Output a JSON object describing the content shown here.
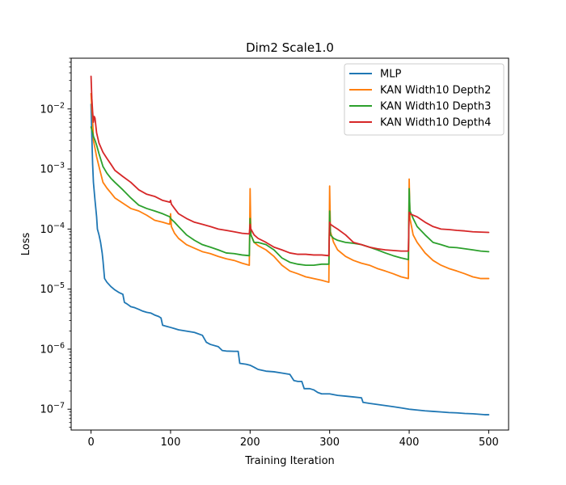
{
  "chart_data": {
    "type": "line",
    "title": "Dim2 Scale1.0",
    "xlabel": "Training Iteration",
    "ylabel": "Loss",
    "yscale": "log",
    "xlim": [
      -25,
      525
    ],
    "ylim": [
      4.5e-08,
      0.07
    ],
    "x_ticks": [
      0,
      100,
      200,
      300,
      400,
      500
    ],
    "x_tick_labels": [
      "0",
      "100",
      "200",
      "300",
      "400",
      "500"
    ],
    "y_ticks": [
      1e-07,
      1e-06,
      1e-05,
      0.0001,
      0.001,
      0.01
    ],
    "y_tick_labels": [
      {
        "base": "10",
        "exp": "−7"
      },
      {
        "base": "10",
        "exp": "−6"
      },
      {
        "base": "10",
        "exp": "−5"
      },
      {
        "base": "10",
        "exp": "−4"
      },
      {
        "base": "10",
        "exp": "−3"
      },
      {
        "base": "10",
        "exp": "−2"
      }
    ],
    "legend_position": "top-right",
    "series": [
      {
        "name": "MLP",
        "color": "#1f77b4",
        "points": [
          [
            0,
            0.012
          ],
          [
            1,
            0.0035
          ],
          [
            2,
            0.0012
          ],
          [
            3,
            0.0006
          ],
          [
            5,
            0.0003
          ],
          [
            7,
            0.00016
          ],
          [
            8,
            0.0001
          ],
          [
            10,
            8e-05
          ],
          [
            12,
            6e-05
          ],
          [
            14,
            4e-05
          ],
          [
            15,
            3e-05
          ],
          [
            17,
            1.5e-05
          ],
          [
            20,
            1.3e-05
          ],
          [
            25,
            1.1e-05
          ],
          [
            30,
            9.7e-06
          ],
          [
            35,
            8.8e-06
          ],
          [
            40,
            8.2e-06
          ],
          [
            42,
            6e-06
          ],
          [
            45,
            5.7e-06
          ],
          [
            50,
            5.1e-06
          ],
          [
            55,
            4.9e-06
          ],
          [
            60,
            4.6e-06
          ],
          [
            65,
            4.3e-06
          ],
          [
            70,
            4.1e-06
          ],
          [
            75,
            4e-06
          ],
          [
            80,
            3.7e-06
          ],
          [
            85,
            3.5e-06
          ],
          [
            88,
            3.3e-06
          ],
          [
            90,
            2.5e-06
          ],
          [
            95,
            2.4e-06
          ],
          [
            100,
            2.3e-06
          ],
          [
            105,
            2.2e-06
          ],
          [
            110,
            2.1e-06
          ],
          [
            120,
            2e-06
          ],
          [
            130,
            1.9e-06
          ],
          [
            140,
            1.7e-06
          ],
          [
            145,
            1.3e-06
          ],
          [
            150,
            1.2e-06
          ],
          [
            160,
            1.1e-06
          ],
          [
            165,
            9.5e-07
          ],
          [
            170,
            9.3e-07
          ],
          [
            180,
            9.2e-07
          ],
          [
            185,
            9.2e-07
          ],
          [
            187,
            5.8e-07
          ],
          [
            195,
            5.6e-07
          ],
          [
            200,
            5.4e-07
          ],
          [
            205,
            5e-07
          ],
          [
            210,
            4.6e-07
          ],
          [
            220,
            4.3e-07
          ],
          [
            230,
            4.2e-07
          ],
          [
            240,
            4e-07
          ],
          [
            250,
            3.8e-07
          ],
          [
            255,
            3e-07
          ],
          [
            260,
            2.9e-07
          ],
          [
            265,
            2.9e-07
          ],
          [
            268,
            2.2e-07
          ],
          [
            275,
            2.2e-07
          ],
          [
            280,
            2.1e-07
          ],
          [
            285,
            1.9e-07
          ],
          [
            290,
            1.8e-07
          ],
          [
            300,
            1.8e-07
          ],
          [
            310,
            1.7e-07
          ],
          [
            320,
            1.65e-07
          ],
          [
            330,
            1.6e-07
          ],
          [
            340,
            1.55e-07
          ],
          [
            342,
            1.3e-07
          ],
          [
            350,
            1.25e-07
          ],
          [
            360,
            1.2e-07
          ],
          [
            370,
            1.15e-07
          ],
          [
            380,
            1.1e-07
          ],
          [
            390,
            1.05e-07
          ],
          [
            400,
            1e-07
          ],
          [
            410,
            9.7e-08
          ],
          [
            420,
            9.4e-08
          ],
          [
            430,
            9.2e-08
          ],
          [
            440,
            9e-08
          ],
          [
            450,
            8.8e-08
          ],
          [
            460,
            8.7e-08
          ],
          [
            470,
            8.5e-08
          ],
          [
            480,
            8.4e-08
          ],
          [
            490,
            8.2e-08
          ],
          [
            495,
            8.1e-08
          ],
          [
            500,
            8.1e-08
          ]
        ]
      },
      {
        "name": "KAN Width10 Depth2",
        "color": "#ff7f0e",
        "points": [
          [
            0,
            0.018
          ],
          [
            1,
            0.01
          ],
          [
            2,
            0.007
          ],
          [
            3,
            0.003
          ],
          [
            5,
            0.0022
          ],
          [
            7,
            0.0016
          ],
          [
            10,
            0.0011
          ],
          [
            15,
            0.0006
          ],
          [
            20,
            0.00048
          ],
          [
            25,
            0.0004
          ],
          [
            30,
            0.00033
          ],
          [
            40,
            0.00027
          ],
          [
            50,
            0.00022
          ],
          [
            60,
            0.0002
          ],
          [
            70,
            0.00017
          ],
          [
            80,
            0.00014
          ],
          [
            90,
            0.00013
          ],
          [
            99,
            0.00012
          ],
          [
            100,
            0.00018
          ],
          [
            101,
            0.00011
          ],
          [
            105,
            8.5e-05
          ],
          [
            110,
            7e-05
          ],
          [
            120,
            5.5e-05
          ],
          [
            130,
            4.8e-05
          ],
          [
            140,
            4.2e-05
          ],
          [
            150,
            3.9e-05
          ],
          [
            160,
            3.5e-05
          ],
          [
            170,
            3.2e-05
          ],
          [
            180,
            3e-05
          ],
          [
            190,
            2.7e-05
          ],
          [
            199,
            2.5e-05
          ],
          [
            200,
            0.00047
          ],
          [
            201,
            8e-05
          ],
          [
            205,
            6e-05
          ],
          [
            210,
            5.3e-05
          ],
          [
            220,
            4.5e-05
          ],
          [
            230,
            3.5e-05
          ],
          [
            240,
            2.5e-05
          ],
          [
            250,
            2e-05
          ],
          [
            260,
            1.8e-05
          ],
          [
            270,
            1.6e-05
          ],
          [
            280,
            1.5e-05
          ],
          [
            290,
            1.4e-05
          ],
          [
            299,
            1.3e-05
          ],
          [
            300,
            0.00052
          ],
          [
            301,
            9e-05
          ],
          [
            305,
            6e-05
          ],
          [
            310,
            4.5e-05
          ],
          [
            320,
            3.5e-05
          ],
          [
            330,
            3e-05
          ],
          [
            340,
            2.7e-05
          ],
          [
            350,
            2.5e-05
          ],
          [
            360,
            2.2e-05
          ],
          [
            370,
            2e-05
          ],
          [
            380,
            1.8e-05
          ],
          [
            390,
            1.6e-05
          ],
          [
            399,
            1.5e-05
          ],
          [
            400,
            0.00068
          ],
          [
            401,
            0.00015
          ],
          [
            405,
            8e-05
          ],
          [
            410,
            6e-05
          ],
          [
            420,
            4e-05
          ],
          [
            430,
            3e-05
          ],
          [
            440,
            2.5e-05
          ],
          [
            450,
            2.2e-05
          ],
          [
            460,
            2e-05
          ],
          [
            470,
            1.8e-05
          ],
          [
            480,
            1.6e-05
          ],
          [
            490,
            1.5e-05
          ],
          [
            500,
            1.5e-05
          ]
        ]
      },
      {
        "name": "KAN Width10 Depth3",
        "color": "#2ca02c",
        "points": [
          [
            0,
            0.005
          ],
          [
            1,
            0.0045
          ],
          [
            2,
            0.004
          ],
          [
            3,
            0.0035
          ],
          [
            5,
            0.003
          ],
          [
            7,
            0.0025
          ],
          [
            10,
            0.0018
          ],
          [
            15,
            0.0011
          ],
          [
            20,
            0.00085
          ],
          [
            25,
            0.0007
          ],
          [
            30,
            0.0006
          ],
          [
            40,
            0.00045
          ],
          [
            50,
            0.00033
          ],
          [
            60,
            0.00025
          ],
          [
            70,
            0.00022
          ],
          [
            80,
            0.0002
          ],
          [
            90,
            0.00018
          ],
          [
            99,
            0.00016
          ],
          [
            100,
            0.00015
          ],
          [
            105,
            0.00013
          ],
          [
            110,
            0.00011
          ],
          [
            120,
            8e-05
          ],
          [
            130,
            6.5e-05
          ],
          [
            140,
            5.5e-05
          ],
          [
            150,
            5e-05
          ],
          [
            160,
            4.5e-05
          ],
          [
            170,
            4e-05
          ],
          [
            180,
            3.9e-05
          ],
          [
            190,
            3.7e-05
          ],
          [
            199,
            3.6e-05
          ],
          [
            200,
            0.00015
          ],
          [
            201,
            8e-05
          ],
          [
            205,
            6e-05
          ],
          [
            210,
            6e-05
          ],
          [
            220,
            5.5e-05
          ],
          [
            230,
            4.5e-05
          ],
          [
            240,
            3.3e-05
          ],
          [
            250,
            2.8e-05
          ],
          [
            260,
            2.6e-05
          ],
          [
            270,
            2.5e-05
          ],
          [
            280,
            2.5e-05
          ],
          [
            290,
            2.6e-05
          ],
          [
            299,
            2.6e-05
          ],
          [
            300,
            0.0002
          ],
          [
            301,
            8e-05
          ],
          [
            305,
            7e-05
          ],
          [
            310,
            6.5e-05
          ],
          [
            320,
            6e-05
          ],
          [
            330,
            5.8e-05
          ],
          [
            340,
            5.5e-05
          ],
          [
            350,
            5e-05
          ],
          [
            360,
            4.5e-05
          ],
          [
            370,
            4e-05
          ],
          [
            380,
            3.6e-05
          ],
          [
            390,
            3.3e-05
          ],
          [
            399,
            3.1e-05
          ],
          [
            400,
            0.00047
          ],
          [
            401,
            0.0002
          ],
          [
            405,
            0.00015
          ],
          [
            410,
            0.00011
          ],
          [
            420,
            8e-05
          ],
          [
            430,
            6e-05
          ],
          [
            440,
            5.5e-05
          ],
          [
            450,
            5e-05
          ],
          [
            460,
            4.9e-05
          ],
          [
            470,
            4.7e-05
          ],
          [
            480,
            4.5e-05
          ],
          [
            490,
            4.3e-05
          ],
          [
            500,
            4.2e-05
          ]
        ]
      },
      {
        "name": "KAN Width10 Depth4",
        "color": "#d62728",
        "points": [
          [
            0,
            0.035
          ],
          [
            1,
            0.015
          ],
          [
            2,
            0.009
          ],
          [
            3,
            0.006
          ],
          [
            4,
            0.0075
          ],
          [
            5,
            0.007
          ],
          [
            7,
            0.004
          ],
          [
            10,
            0.0027
          ],
          [
            15,
            0.0019
          ],
          [
            20,
            0.0015
          ],
          [
            25,
            0.0012
          ],
          [
            30,
            0.00095
          ],
          [
            40,
            0.00075
          ],
          [
            50,
            0.0006
          ],
          [
            60,
            0.00045
          ],
          [
            70,
            0.00038
          ],
          [
            80,
            0.00035
          ],
          [
            90,
            0.0003
          ],
          [
            99,
            0.00028
          ],
          [
            100,
            0.0003
          ],
          [
            101,
            0.00026
          ],
          [
            105,
            0.00022
          ],
          [
            110,
            0.00018
          ],
          [
            120,
            0.00015
          ],
          [
            130,
            0.00013
          ],
          [
            140,
            0.00012
          ],
          [
            150,
            0.00011
          ],
          [
            160,
            0.0001
          ],
          [
            170,
            9.5e-05
          ],
          [
            180,
            9e-05
          ],
          [
            190,
            8.5e-05
          ],
          [
            199,
            8.3e-05
          ],
          [
            200,
            0.00012
          ],
          [
            201,
            0.0001
          ],
          [
            205,
            8e-05
          ],
          [
            210,
            7e-05
          ],
          [
            220,
            6e-05
          ],
          [
            230,
            5e-05
          ],
          [
            240,
            4.5e-05
          ],
          [
            250,
            4e-05
          ],
          [
            260,
            3.8e-05
          ],
          [
            270,
            3.8e-05
          ],
          [
            280,
            3.7e-05
          ],
          [
            290,
            3.7e-05
          ],
          [
            299,
            3.6e-05
          ],
          [
            300,
            0.00013
          ],
          [
            301,
            0.00012
          ],
          [
            305,
            0.00011
          ],
          [
            310,
            0.0001
          ],
          [
            320,
            8e-05
          ],
          [
            330,
            6e-05
          ],
          [
            340,
            5.5e-05
          ],
          [
            350,
            5e-05
          ],
          [
            360,
            4.7e-05
          ],
          [
            370,
            4.5e-05
          ],
          [
            380,
            4.4e-05
          ],
          [
            390,
            4.3e-05
          ],
          [
            399,
            4.3e-05
          ],
          [
            400,
            0.00019
          ],
          [
            401,
            0.00018
          ],
          [
            405,
            0.00017
          ],
          [
            410,
            0.00016
          ],
          [
            420,
            0.00013
          ],
          [
            430,
            0.00011
          ],
          [
            440,
            0.0001
          ],
          [
            450,
            9.8e-05
          ],
          [
            460,
            9.5e-05
          ],
          [
            470,
            9.3e-05
          ],
          [
            480,
            9e-05
          ],
          [
            490,
            8.9e-05
          ],
          [
            500,
            8.8e-05
          ]
        ]
      }
    ]
  }
}
